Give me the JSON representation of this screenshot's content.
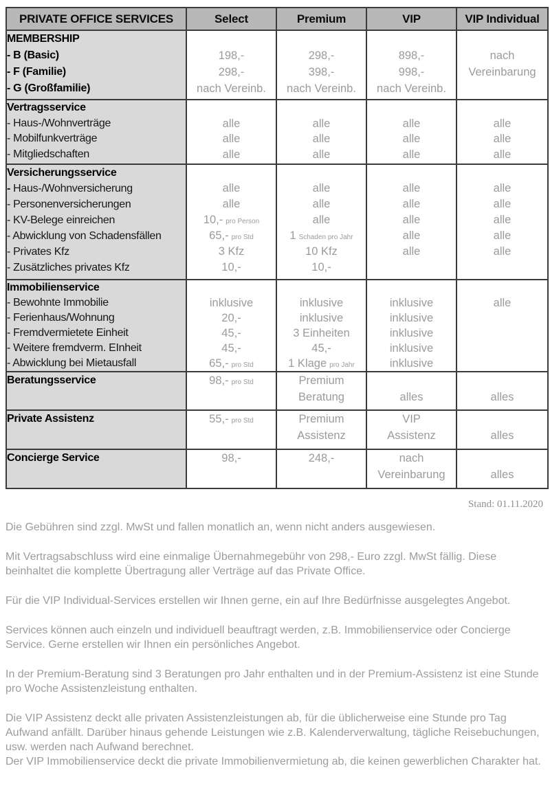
{
  "colors": {
    "header_bg": "#b8b8b8",
    "label_column_bg": "#d9d9d9",
    "border": "#3b3b3b",
    "value_text": "#9b9b9b",
    "label_text": "#000000",
    "note_text": "#9c9c9c"
  },
  "table": {
    "header": {
      "service_col": "PRIVATE OFFICE SERVICES",
      "plan_cols": [
        "Select",
        "Premium",
        "VIP",
        "VIP Individual"
      ]
    },
    "sections": [
      {
        "id": "membership",
        "rows": [
          {
            "label": "MEMBERSHIP",
            "bold": true,
            "cells": [
              "",
              "",
              "",
              ""
            ]
          },
          {
            "label": "- B (Basic)",
            "bold": true,
            "cells": [
              "198,-",
              "298,-",
              "898,-",
              "nach"
            ]
          },
          {
            "label": "- F (Familie)",
            "bold": true,
            "cells": [
              "298,-",
              "398,-",
              "998,-",
              "Vereinbarung"
            ]
          },
          {
            "label": "- G (Großfamilie)",
            "bold": true,
            "cells": [
              "nach Vereinb.",
              "nach Vereinb.",
              "nach Vereinb.",
              ""
            ]
          }
        ]
      },
      {
        "id": "vertragsservice",
        "rows": [
          {
            "label": "Vertragsservice",
            "bold": true,
            "cells": [
              "",
              "",
              "",
              ""
            ]
          },
          {
            "label": "- Haus-/Wohnverträge",
            "cells": [
              "alle",
              "alle",
              "alle",
              "alle"
            ]
          },
          {
            "label": "- Mobilfunkverträge",
            "cells": [
              "alle",
              "alle",
              "alle",
              "alle"
            ]
          },
          {
            "label": "- Mitgliedschaften",
            "cells": [
              "alle",
              "alle",
              "alle",
              "alle"
            ]
          }
        ]
      },
      {
        "id": "versicherungsservice",
        "rows": [
          {
            "label": "Versicherungsservice",
            "bold": true,
            "cells": [
              "",
              "",
              "",
              ""
            ]
          },
          {
            "label": "- Haus-/Wohnversicherung",
            "bold_dash": true,
            "cells": [
              "alle",
              "alle",
              "alle",
              "alle"
            ]
          },
          {
            "label": "- Personenversicherungen",
            "cells": [
              "alle",
              "alle",
              "alle",
              "alle"
            ]
          },
          {
            "label": "- KV-Belege einreichen",
            "cells": [
              {
                "t": "10,-",
                "s": "pro Person"
              },
              "alle",
              "alle",
              "alle"
            ]
          },
          {
            "label": "- Abwicklung von Schadensfällen",
            "cells": [
              {
                "t": "65,-",
                "s": "pro Std"
              },
              {
                "t": "1",
                "s": "Schaden pro Jahr"
              },
              "alle",
              "alle"
            ]
          },
          {
            "label": "- Privates Kfz",
            "cells": [
              "3 Kfz",
              "10 Kfz",
              "alle",
              "alle"
            ]
          },
          {
            "label": "- Zusätzliches privates Kfz",
            "cells": [
              "10,-",
              "10,-",
              "",
              ""
            ]
          }
        ]
      },
      {
        "id": "immobilienservice",
        "rows": [
          {
            "label": "Immobilienservice",
            "bold": true,
            "cells": [
              "",
              "",
              "",
              ""
            ]
          },
          {
            "label": "- Bewohnte Immobilie",
            "cells": [
              "inklusive",
              "inklusive",
              "inklusive",
              "alle"
            ]
          },
          {
            "label": "- Ferienhaus/Wohnung",
            "cells": [
              "20,-",
              "inklusive",
              "inklusive",
              ""
            ]
          },
          {
            "label": "- Fremdvermietete Einheit",
            "cells": [
              "45,-",
              "3 Einheiten",
              "inklusive",
              ""
            ]
          },
          {
            "label": "- Weitere fremdverm. EInheit",
            "cells": [
              "45,-",
              "45,-",
              "inklusive",
              ""
            ]
          },
          {
            "label": "- Abwicklung bei Mietausfall",
            "cells": [
              {
                "t": "65,-",
                "s": "pro Std"
              },
              {
                "t": "1 Klage",
                "s": "pro Jahr"
              },
              "inklusive",
              ""
            ]
          }
        ]
      },
      {
        "id": "beratungsservice",
        "rows": [
          {
            "label": "Beratungsservice",
            "bold": true,
            "cells": [
              {
                "t": "98,-",
                "s": "pro Std"
              },
              "Premium",
              "",
              ""
            ]
          },
          {
            "label": "",
            "cells": [
              "",
              "Beratung",
              "alles",
              "alles"
            ]
          }
        ]
      },
      {
        "id": "private-assistenz",
        "rows": [
          {
            "label": "Private Assistenz",
            "bold": true,
            "cells": [
              {
                "t": "55,-",
                "s": "pro Std"
              },
              "Premium",
              "VIP",
              ""
            ]
          },
          {
            "label": "",
            "cells": [
              "",
              "Assistenz",
              "Assistenz",
              "alles"
            ]
          }
        ]
      },
      {
        "id": "concierge-service",
        "rows": [
          {
            "label": "Concierge Service",
            "bold": true,
            "cells": [
              "98,-",
              "248,-",
              "nach",
              ""
            ]
          },
          {
            "label": "",
            "cells": [
              "",
              "",
              "Vereinbarung",
              "alles"
            ]
          }
        ]
      }
    ]
  },
  "meta": {
    "stand": "Stand: 01.11.2020"
  },
  "notes": [
    "Die Gebühren sind zzgl. MwSt und fallen monatlich an, wenn nicht anders ausgewiesen.",
    "Mit Vertragsabschluss wird eine einmalige Übernahmegebühr von 298,- Euro zzgl. MwSt fällig. Diese beinhaltet die komplette Übertragung aller Verträge auf das Private Office.",
    "Für die VIP Individual-Services erstellen wir Ihnen gerne, ein auf Ihre Bedürfnisse ausgelegtes Angebot.",
    "Services können auch einzeln und individuell beauftragt werden, z.B. Immobilienservice oder Concierge Service. Gerne erstellen wir Ihnen ein persönliches Angebot.",
    "In der Premium-Beratung sind 3 Beratungen pro Jahr enthalten und in der Premium-Assistenz ist eine Stunde pro Woche Assistenzleistung enthalten.",
    "Die VIP Assistenz deckt alle privaten Assistenzleistungen ab, für die üblicherweise eine Stunde pro Tag Aufwand anfällt. Darüber hinaus gehende Leistungen wie z.B. Kalenderverwaltung, tägliche Reisebuchungen, usw. werden nach Aufwand berechnet.\nDer VIP Immobilienservice deckt die private Immobilienvermietung ab, die keinen gewerblichen Charakter hat."
  ]
}
